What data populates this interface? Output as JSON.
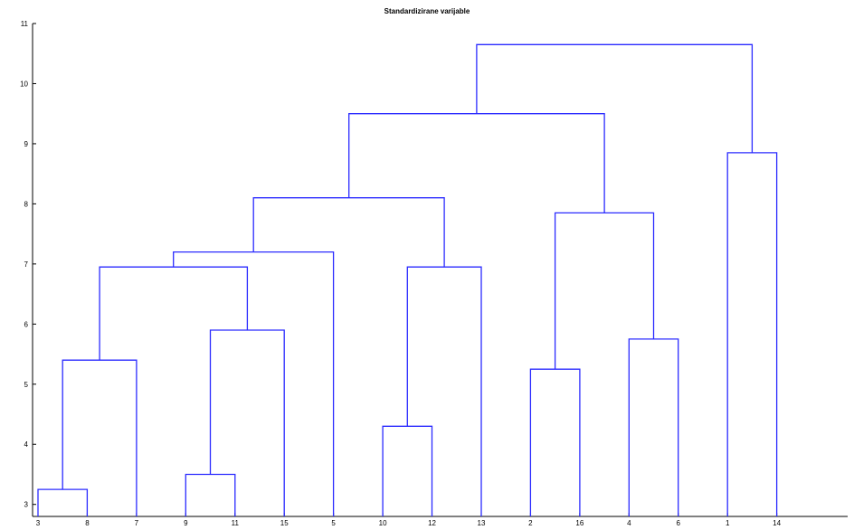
{
  "chart_data": {
    "type": "dendrogram",
    "title": "Standardizirane varijable",
    "xlabel": "",
    "ylabel": "",
    "ylim": [
      2.8,
      11
    ],
    "yticks": [
      3,
      4,
      5,
      6,
      7,
      8,
      9,
      10,
      11
    ],
    "leaf_order": [
      "3",
      "8",
      "7",
      "9",
      "11",
      "15",
      "5",
      "10",
      "12",
      "13",
      "2",
      "16",
      "4",
      "6",
      "1",
      "14"
    ],
    "merges": [
      {
        "a": "3",
        "b": "8",
        "height": 3.25
      },
      {
        "a": "9",
        "b": "11",
        "height": 3.5
      },
      {
        "a": "10",
        "b": "12",
        "height": 4.3
      },
      {
        "a": "2",
        "b": "16",
        "height": 5.25
      },
      {
        "a": "(3,8)",
        "b": "7",
        "height": 5.4
      },
      {
        "a": "4",
        "b": "6",
        "height": 5.75
      },
      {
        "a": "(9,11)",
        "b": "15",
        "height": 5.9
      },
      {
        "a": "((3,8),7)",
        "b": "((9,11),15)",
        "height": 6.95
      },
      {
        "a": "(10,12)",
        "b": "13",
        "height": 6.95
      },
      {
        "a": "(((3,8),7),((9,11),15))",
        "b": "5",
        "height": 7.2
      },
      {
        "a": "(2,16)",
        "b": "(4,6)",
        "height": 7.85
      },
      {
        "a": "((((3,8),7),((9,11),15)),5)",
        "b": "((10,12),13)",
        "height": 8.1
      },
      {
        "a": "1",
        "b": "14",
        "height": 8.85
      },
      {
        "a": "(((((3,8),7),((9,11),15)),5),((10,12),13))",
        "b": "((2,16),(4,6))",
        "height": 9.5
      },
      {
        "a": "((((((3,8),7),((9,11),15)),5),((10,12),13)),((2,16),(4,6)))",
        "b": "(1,14)",
        "height": 10.65
      }
    ],
    "line_color": "#2b2bff",
    "grid": false
  }
}
